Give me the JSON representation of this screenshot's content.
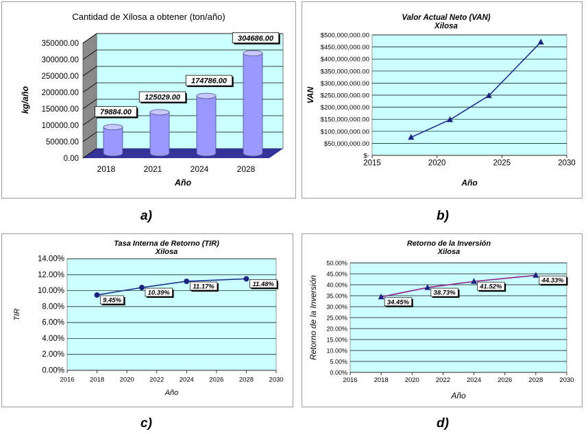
{
  "captions": [
    "a)",
    "b)",
    "c)",
    "d)"
  ],
  "colors": {
    "plot_bg": "#ccffff",
    "grid": "#000000",
    "bar": "#9999ff",
    "floor": "#333399",
    "line_b": "#1f2f8f",
    "line_c": "#1f2f8f",
    "line_d": "#8b1a8b",
    "marker": "#1a237e"
  },
  "chart_data": [
    {
      "type": "bar",
      "title": "Cantidad de Xilosa a obtener (ton/año)",
      "xlabel": "Año",
      "ylabel": "kg/año",
      "categories": [
        "2018",
        "2021",
        "2024",
        "2028"
      ],
      "values": [
        79884.0,
        125029.0,
        174786.0,
        304686.0
      ],
      "data_labels": [
        "79884.00",
        "125029.00",
        "174786.00",
        "304686.00"
      ],
      "ylim": [
        0,
        350000
      ],
      "yticks": [
        "0.00",
        "50000.00",
        "100000.00",
        "150000.00",
        "200000.00",
        "250000.00",
        "300000.00",
        "350000.00"
      ],
      "grid": true,
      "style": "3d-cylinder"
    },
    {
      "type": "line",
      "title": "Valor Actual Neto (VAN)",
      "subtitle": "Xilosa",
      "xlabel": "Año",
      "ylabel": "VAN",
      "x": [
        2018,
        2021,
        2024,
        2028
      ],
      "y": [
        75000000,
        148000000,
        248000000,
        470000000
      ],
      "xlim": [
        2015,
        2030
      ],
      "xticks": [
        "2015",
        "2020",
        "2025",
        "2030"
      ],
      "ylim": [
        0,
        500000000
      ],
      "yticks": [
        "$-",
        "$50,000,000.00",
        "$100,000,000.00",
        "$150,000,000.00",
        "$200,000,000.00",
        "$250,000,000.00",
        "$300,000,000.00",
        "$350,000,000.00",
        "$400,000,000.00",
        "$450,000,000.00",
        "$500,000,000.00"
      ],
      "marker": "triangle",
      "grid": true
    },
    {
      "type": "line",
      "title": "Tasa Interna de Retorno  (TIR)",
      "subtitle": "Xilosa",
      "xlabel": "Año",
      "ylabel": "TIR",
      "x": [
        2018,
        2021,
        2024,
        2028
      ],
      "y": [
        9.45,
        10.39,
        11.17,
        11.48
      ],
      "data_labels": [
        "9.45%",
        "10.39%",
        "11.17%",
        "11.48%"
      ],
      "xlim": [
        2016,
        2030
      ],
      "xticks": [
        "2016",
        "2018",
        "2020",
        "2022",
        "2024",
        "2026",
        "2028",
        "2030"
      ],
      "ylim": [
        0,
        14
      ],
      "yticks": [
        "0.00%",
        "2.00%",
        "4.00%",
        "6.00%",
        "8.00%",
        "10.00%",
        "12.00%",
        "14.00%"
      ],
      "marker": "circle",
      "grid": true
    },
    {
      "type": "line",
      "title": "Retorno de la Inversión",
      "subtitle": "Xilosa",
      "xlabel": "Año",
      "ylabel": "Retorno de la Inversión",
      "x": [
        2018,
        2021,
        2024,
        2028
      ],
      "y": [
        34.45,
        38.73,
        41.52,
        44.33
      ],
      "data_labels": [
        "34.45%",
        "38.73%",
        "41.52%",
        "44.33%"
      ],
      "xlim": [
        2016,
        2030
      ],
      "xticks": [
        "2016",
        "2018",
        "2020",
        "2022",
        "2024",
        "2026",
        "2028",
        "2030"
      ],
      "ylim": [
        0,
        50
      ],
      "yticks": [
        "0.00%",
        "5.00%",
        "10.00%",
        "15.00%",
        "20.00%",
        "25.00%",
        "30.00%",
        "35.00%",
        "40.00%",
        "45.00%",
        "50.00%"
      ],
      "marker": "triangle",
      "grid": true
    }
  ]
}
